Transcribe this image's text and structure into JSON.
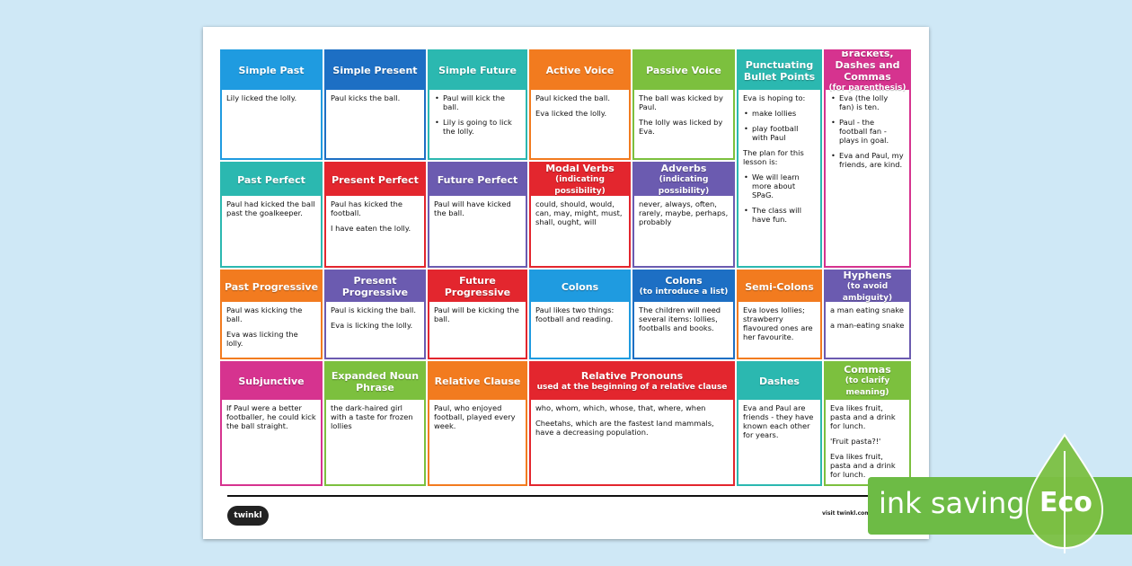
{
  "cards": [
    {
      "title": "Simple Past",
      "color": "#1f9be0",
      "body": [
        {
          "text": "Lily licked the lolly."
        }
      ]
    },
    {
      "title": "Simple Present",
      "color": "#1d6fc4",
      "body": [
        {
          "text": "Paul kicks the ball."
        }
      ]
    },
    {
      "title": "Simple Future",
      "color": "#2bb8b0",
      "body": [
        {
          "text": "Paul will kick the ball.",
          "bullet": true
        },
        {
          "text": "Lily is going to lick the lolly.",
          "bullet": true
        }
      ]
    },
    {
      "title": "Active Voice",
      "color": "#f27b1f",
      "body": [
        {
          "text": "Paul kicked the ball."
        },
        {
          "text": "Eva licked the lolly."
        }
      ]
    },
    {
      "title": "Passive Voice",
      "color": "#7cc03e",
      "body": [
        {
          "text": "The ball was kicked by Paul."
        },
        {
          "text": "The lolly was licked by Eva."
        }
      ]
    },
    {
      "title": "Punctuating Bullet Points",
      "color": "#2bb8b0",
      "body": [
        {
          "text": "Eva is hoping to:"
        },
        {
          "text": "make lollies",
          "bullet": true
        },
        {
          "text": "play football with Paul",
          "bullet": true
        },
        {
          "text": "The plan for this lesson is:"
        },
        {
          "text": "We will learn more about SPaG.",
          "bullet": true
        },
        {
          "text": "The class will have fun.",
          "bullet": true
        }
      ]
    },
    {
      "title": "Brackets, Dashes and Commas",
      "subtitle": "(for parenthesis)",
      "color": "#d6338f",
      "body": [
        {
          "text": "Eva (the lolly fan) is ten.",
          "bullet": true
        },
        {
          "text": "Paul - the football fan - plays in goal.",
          "bullet": true
        },
        {
          "text": "Eva and Paul, my friends, are kind.",
          "bullet": true
        }
      ]
    },
    {
      "title": "Past Perfect",
      "color": "#2bb8b0",
      "body": [
        {
          "text": "Paul had kicked the ball past the goalkeeper."
        }
      ]
    },
    {
      "title": "Present Perfect",
      "color": "#e3262e",
      "body": [
        {
          "text": "Paul has kicked the football."
        },
        {
          "text": "I have eaten the lolly."
        }
      ]
    },
    {
      "title": "Future Perfect",
      "color": "#6b5bb0",
      "body": [
        {
          "text": "Paul will have kicked the ball."
        }
      ]
    },
    {
      "title": "Modal Verbs",
      "subtitle": "(indicating possibility)",
      "color": "#e3262e",
      "body": [
        {
          "text": "could, should, would, can, may, might, must, shall, ought, will"
        }
      ]
    },
    {
      "title": "Adverbs",
      "subtitle": "(indicating possibility)",
      "color": "#6b5bb0",
      "body": [
        {
          "text": "never, always, often, rarely, maybe, perhaps, probably"
        }
      ]
    },
    {
      "title": "Past Progressive",
      "color": "#f27b1f",
      "body": [
        {
          "text": "Paul was kicking the ball."
        },
        {
          "text": "Eva was licking the lolly."
        }
      ]
    },
    {
      "title": "Present Progressive",
      "color": "#6b5bb0",
      "body": [
        {
          "text": "Paul is kicking the ball."
        },
        {
          "text": "Eva is licking the lolly."
        }
      ]
    },
    {
      "title": "Future Progressive",
      "color": "#e3262e",
      "body": [
        {
          "text": "Paul will be kicking the ball."
        }
      ]
    },
    {
      "title": "Colons",
      "color": "#1f9be0",
      "body": [
        {
          "text": "Paul likes two things: football and reading."
        }
      ]
    },
    {
      "title": "Colons",
      "subtitle": "(to introduce a list)",
      "color": "#1d6fc4",
      "body": [
        {
          "text": "The children will need several items: lollies, footballs and books."
        }
      ]
    },
    {
      "title": "Semi-Colons",
      "color": "#f27b1f",
      "body": [
        {
          "text": "Eva loves lollies; strawberry flavoured ones are her favourite."
        }
      ]
    },
    {
      "title": "Hyphens",
      "subtitle": "(to avoid ambiguity)",
      "color": "#6b5bb0",
      "body": [
        {
          "text": "a man eating snake"
        },
        {
          "text": "a man-eating snake"
        }
      ]
    },
    {
      "title": "Subjunctive",
      "color": "#d6338f",
      "body": [
        {
          "text": "If Paul were a better footballer, he could kick the ball straight."
        }
      ]
    },
    {
      "title": "Expanded Noun Phrase",
      "color": "#7cc03e",
      "body": [
        {
          "text": "the dark-haired girl with a taste for frozen lollies"
        }
      ]
    },
    {
      "title": "Relative Clause",
      "color": "#f27b1f",
      "body": [
        {
          "text": "Paul, who enjoyed football, played every week."
        }
      ]
    },
    {
      "title": "Relative Pronouns",
      "subtitle": "used at the beginning of a relative clause",
      "color": "#e3262e",
      "body": [
        {
          "text": "who, whom, which, whose, that, where, when"
        },
        {
          "text": "Cheetahs, which are the fastest land  mammals, have a decreasing population."
        }
      ]
    },
    {
      "title": "Dashes",
      "color": "#2bb8b0",
      "body": [
        {
          "text": "Eva and Paul are friends - they have known each other for years."
        }
      ]
    },
    {
      "title": "Commas",
      "subtitle": "(to clarify meaning)",
      "color": "#7cc03e",
      "body": [
        {
          "text": "Eva likes fruit, pasta and a drink for lunch."
        },
        {
          "text": "'Fruit pasta?!'"
        },
        {
          "text": "Eva likes fruit, pasta and a drink for lunch."
        }
      ]
    }
  ],
  "footer": {
    "logo": "twinkl",
    "site": "visit twinkl.com"
  },
  "badge": {
    "text": "ink saving",
    "eco": "Eco"
  }
}
